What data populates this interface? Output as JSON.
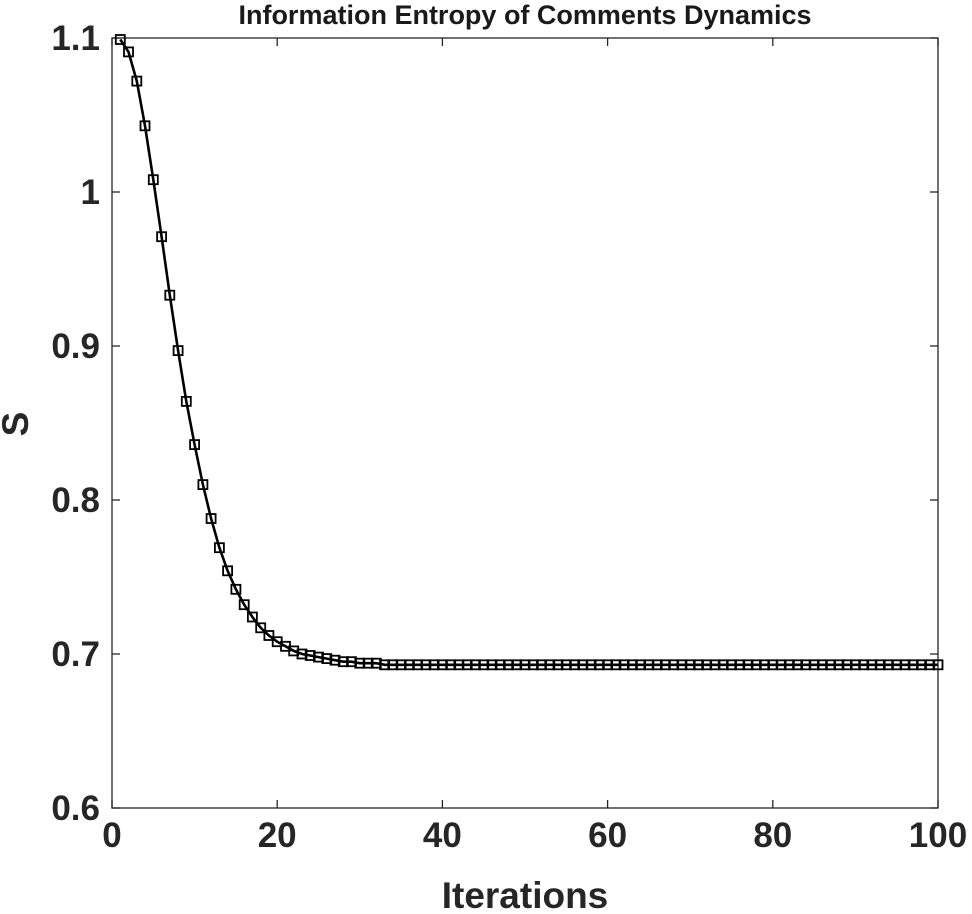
{
  "chart_data": {
    "type": "line",
    "title": "Information Entropy of Comments Dynamics",
    "xlabel": "Iterations",
    "ylabel": "S",
    "xlim": [
      0,
      100
    ],
    "ylim": [
      0.6,
      1.1
    ],
    "xticks": [
      0,
      20,
      40,
      60,
      80,
      100
    ],
    "xtick_labels": [
      "0",
      "20",
      "40",
      "60",
      "80",
      "100"
    ],
    "yticks": [
      0.6,
      0.7,
      0.8,
      0.9,
      1.0,
      1.1
    ],
    "ytick_labels": [
      "0.6",
      "0.7",
      "0.8",
      "0.9",
      "1",
      "1.1"
    ],
    "grid": false,
    "box": true,
    "line_color": "#000000",
    "marker": "square",
    "series": [
      {
        "x": [
          1,
          2,
          3,
          4,
          5,
          6,
          7,
          8,
          9,
          10,
          11,
          12,
          13,
          14,
          15,
          16,
          17,
          18,
          19,
          20,
          21,
          22,
          23,
          24,
          25,
          26,
          27,
          28,
          29,
          30,
          31,
          32,
          33,
          34,
          35,
          36,
          37,
          38,
          39,
          40,
          41,
          42,
          43,
          44,
          45,
          46,
          47,
          48,
          49,
          50,
          51,
          52,
          53,
          54,
          55,
          56,
          57,
          58,
          59,
          60,
          61,
          62,
          63,
          64,
          65,
          66,
          67,
          68,
          69,
          70,
          71,
          72,
          73,
          74,
          75,
          76,
          77,
          78,
          79,
          80,
          81,
          82,
          83,
          84,
          85,
          86,
          87,
          88,
          89,
          90,
          91,
          92,
          93,
          94,
          95,
          96,
          97,
          98,
          99,
          100
        ],
        "values": [
          1.099,
          1.091,
          1.072,
          1.043,
          1.008,
          0.971,
          0.933,
          0.897,
          0.864,
          0.836,
          0.81,
          0.788,
          0.769,
          0.754,
          0.742,
          0.732,
          0.724,
          0.717,
          0.712,
          0.708,
          0.705,
          0.702,
          0.7,
          0.699,
          0.698,
          0.697,
          0.696,
          0.695,
          0.695,
          0.694,
          0.694,
          0.694,
          0.693,
          0.693,
          0.693,
          0.693,
          0.693,
          0.693,
          0.693,
          0.693,
          0.693,
          0.693,
          0.693,
          0.693,
          0.693,
          0.693,
          0.693,
          0.693,
          0.693,
          0.693,
          0.693,
          0.693,
          0.693,
          0.693,
          0.693,
          0.693,
          0.693,
          0.693,
          0.693,
          0.693,
          0.693,
          0.693,
          0.693,
          0.693,
          0.693,
          0.693,
          0.693,
          0.693,
          0.693,
          0.693,
          0.693,
          0.693,
          0.693,
          0.693,
          0.693,
          0.693,
          0.693,
          0.693,
          0.693,
          0.693,
          0.693,
          0.693,
          0.693,
          0.693,
          0.693,
          0.693,
          0.693,
          0.693,
          0.693,
          0.693,
          0.693,
          0.693,
          0.693,
          0.693,
          0.693,
          0.693,
          0.693,
          0.693,
          0.693,
          0.693
        ]
      }
    ]
  }
}
